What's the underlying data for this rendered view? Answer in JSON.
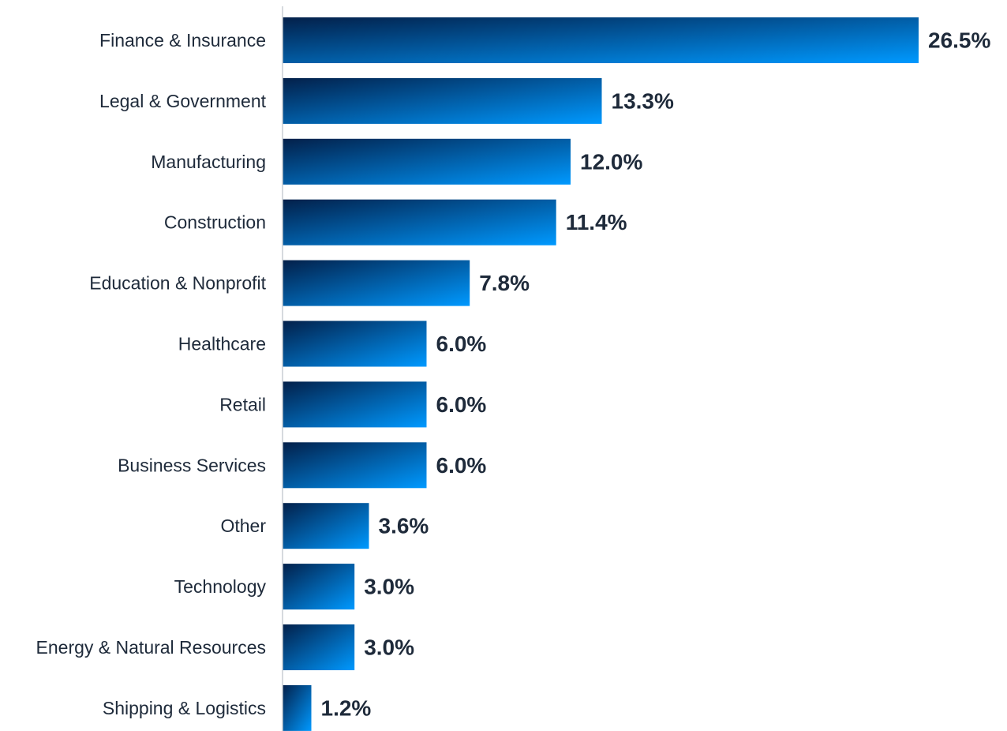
{
  "chart_data": {
    "type": "bar",
    "orientation": "horizontal",
    "title": "",
    "xlabel": "",
    "ylabel": "",
    "categories": [
      "Finance & Insurance",
      "Legal & Government",
      "Manufacturing",
      "Construction",
      "Education & Nonprofit",
      "Healthcare",
      "Retail",
      "Business Services",
      "Other",
      "Technology",
      "Energy & Natural Resources",
      "Shipping & Logistics"
    ],
    "values": [
      26.5,
      13.3,
      12.0,
      11.4,
      7.8,
      6.0,
      6.0,
      6.0,
      3.6,
      3.0,
      3.0,
      1.2
    ],
    "value_labels": [
      "26.5%",
      "13.3%",
      "12.0%",
      "11.4%",
      "7.8%",
      "6.0%",
      "6.0%",
      "6.0%",
      "3.6%",
      "3.0%",
      "3.0%",
      "1.2%"
    ],
    "xlim": [
      0,
      26.5
    ],
    "grid": false,
    "legend": "none",
    "colors": {
      "gradient_start": "#03204a",
      "gradient_end": "#0099ff",
      "text": "#1e2a3a",
      "axis": "#c8cdd3"
    }
  }
}
